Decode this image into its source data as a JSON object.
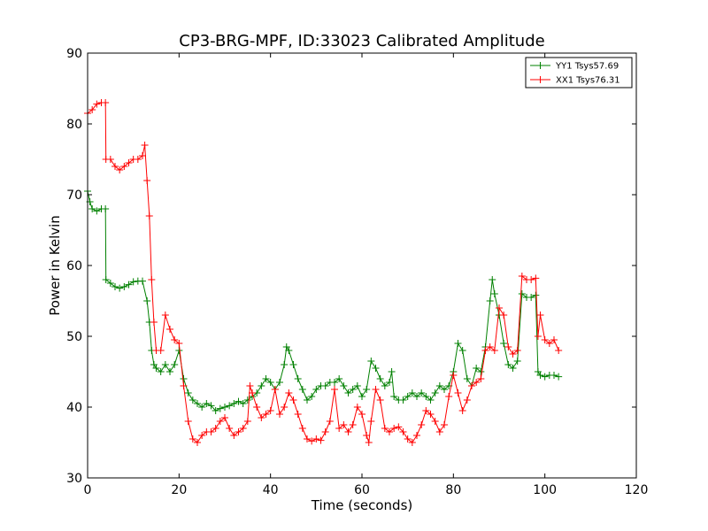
{
  "chart_data": {
    "type": "line",
    "title": "CP3-BRG-MPF, ID:33023 Calibrated Amplitude",
    "xlabel": "Time (seconds)",
    "ylabel": "Power in Kelvin",
    "xlim": [
      0,
      120
    ],
    "ylim": [
      30,
      90
    ],
    "xticks": [
      0,
      20,
      40,
      60,
      80,
      100,
      120
    ],
    "yticks": [
      30,
      40,
      50,
      60,
      70,
      80,
      90
    ],
    "grid": false,
    "legend_position": "top-right",
    "marker": "plus",
    "series": [
      {
        "name": "YY1 Tsys57.69",
        "color": "#008000",
        "points": [
          [
            0,
            70.5
          ],
          [
            0.5,
            69
          ],
          [
            1,
            68
          ],
          [
            2,
            67.7
          ],
          [
            3,
            68
          ],
          [
            3.9,
            68
          ],
          [
            4,
            58
          ],
          [
            5,
            57.5
          ],
          [
            6,
            57
          ],
          [
            7,
            56.8
          ],
          [
            8,
            57
          ],
          [
            9,
            57.3
          ],
          [
            10,
            57.7
          ],
          [
            11,
            57.8
          ],
          [
            12,
            57.8
          ],
          [
            13,
            55
          ],
          [
            13.5,
            52
          ],
          [
            14,
            48
          ],
          [
            14.5,
            46
          ],
          [
            15,
            45.5
          ],
          [
            16,
            45
          ],
          [
            17,
            46
          ],
          [
            18,
            45
          ],
          [
            19,
            46
          ],
          [
            20,
            48
          ],
          [
            21,
            44
          ],
          [
            22,
            42
          ],
          [
            23,
            41
          ],
          [
            24,
            40.5
          ],
          [
            25,
            40
          ],
          [
            26,
            40.5
          ],
          [
            27,
            40.2
          ],
          [
            28,
            39.5
          ],
          [
            29,
            39.8
          ],
          [
            30,
            40
          ],
          [
            31,
            40.2
          ],
          [
            32,
            40.5
          ],
          [
            33,
            40.8
          ],
          [
            34,
            40.5
          ],
          [
            35,
            41
          ],
          [
            36,
            41.5
          ],
          [
            37,
            42
          ],
          [
            38,
            43
          ],
          [
            39,
            44
          ],
          [
            40,
            43.5
          ],
          [
            41,
            42.5
          ],
          [
            42,
            43.5
          ],
          [
            43,
            46
          ],
          [
            43.5,
            48.5
          ],
          [
            44,
            48
          ],
          [
            45,
            46
          ],
          [
            46,
            44
          ],
          [
            47,
            42.5
          ],
          [
            48,
            41
          ],
          [
            49,
            41.5
          ],
          [
            50,
            42.5
          ],
          [
            51,
            43
          ],
          [
            52,
            43
          ],
          [
            53,
            43.5
          ],
          [
            54,
            43.5
          ],
          [
            55,
            44
          ],
          [
            56,
            43
          ],
          [
            57,
            42
          ],
          [
            58,
            42.5
          ],
          [
            59,
            43
          ],
          [
            60,
            41.5
          ],
          [
            61,
            42.5
          ],
          [
            62,
            46.5
          ],
          [
            63,
            45.5
          ],
          [
            64,
            44
          ],
          [
            65,
            43
          ],
          [
            66,
            43.5
          ],
          [
            66.5,
            45
          ],
          [
            67,
            41.5
          ],
          [
            68,
            41
          ],
          [
            69,
            41
          ],
          [
            70,
            41.5
          ],
          [
            71,
            42
          ],
          [
            72,
            41.5
          ],
          [
            73,
            42
          ],
          [
            74,
            41.5
          ],
          [
            75,
            41
          ],
          [
            76,
            42
          ],
          [
            77,
            43
          ],
          [
            78,
            42.5
          ],
          [
            79,
            43
          ],
          [
            80,
            45
          ],
          [
            81,
            49
          ],
          [
            82,
            48
          ],
          [
            83,
            44
          ],
          [
            84,
            43
          ],
          [
            85,
            45.5
          ],
          [
            86,
            45
          ],
          [
            87,
            48.5
          ],
          [
            88,
            55
          ],
          [
            88.5,
            58
          ],
          [
            89,
            56
          ],
          [
            90,
            53
          ],
          [
            91,
            49
          ],
          [
            92,
            46
          ],
          [
            93,
            45.5
          ],
          [
            94,
            46.5
          ],
          [
            95,
            56
          ],
          [
            96,
            55.5
          ],
          [
            97,
            55.5
          ],
          [
            98,
            55.8
          ],
          [
            98.5,
            45
          ],
          [
            99,
            44.5
          ],
          [
            100,
            44.3
          ],
          [
            101,
            44.5
          ],
          [
            102,
            44.5
          ],
          [
            103,
            44.3
          ]
        ]
      },
      {
        "name": "XX1 Tsys76.31",
        "color": "#ff0000",
        "points": [
          [
            0,
            81.5
          ],
          [
            1,
            82
          ],
          [
            2,
            82.8
          ],
          [
            3,
            83
          ],
          [
            3.9,
            83
          ],
          [
            4,
            75
          ],
          [
            5,
            75
          ],
          [
            6,
            74
          ],
          [
            7,
            73.5
          ],
          [
            8,
            74
          ],
          [
            9,
            74.5
          ],
          [
            10,
            75
          ],
          [
            11,
            75
          ],
          [
            12,
            75.5
          ],
          [
            12.5,
            77
          ],
          [
            13,
            72
          ],
          [
            13.5,
            67
          ],
          [
            14,
            58
          ],
          [
            14.5,
            52
          ],
          [
            15,
            48
          ],
          [
            16,
            48
          ],
          [
            17,
            53
          ],
          [
            18,
            51
          ],
          [
            19,
            49.5
          ],
          [
            20,
            49
          ],
          [
            21,
            43
          ],
          [
            22,
            38
          ],
          [
            23,
            35.5
          ],
          [
            24,
            35
          ],
          [
            25,
            36
          ],
          [
            26,
            36.5
          ],
          [
            27,
            36.5
          ],
          [
            28,
            37
          ],
          [
            29,
            38
          ],
          [
            30,
            38.5
          ],
          [
            31,
            37
          ],
          [
            32,
            36
          ],
          [
            33,
            36.5
          ],
          [
            34,
            37
          ],
          [
            35,
            38
          ],
          [
            35.5,
            43
          ],
          [
            36,
            42
          ],
          [
            37,
            40
          ],
          [
            38,
            38.5
          ],
          [
            39,
            39
          ],
          [
            40,
            39.5
          ],
          [
            41,
            42.5
          ],
          [
            42,
            39
          ],
          [
            43,
            40
          ],
          [
            44,
            42
          ],
          [
            45,
            41
          ],
          [
            46,
            39
          ],
          [
            47,
            37
          ],
          [
            48,
            35.5
          ],
          [
            49,
            35.2
          ],
          [
            50,
            35.5
          ],
          [
            51,
            35.3
          ],
          [
            52,
            36.5
          ],
          [
            53,
            38
          ],
          [
            54,
            42.5
          ],
          [
            55,
            37
          ],
          [
            56,
            37.5
          ],
          [
            57,
            36.5
          ],
          [
            58,
            37.5
          ],
          [
            59,
            40
          ],
          [
            60,
            39
          ],
          [
            61,
            36
          ],
          [
            61.5,
            35
          ],
          [
            62,
            38
          ],
          [
            63,
            42.5
          ],
          [
            64,
            41
          ],
          [
            65,
            37
          ],
          [
            66,
            36.5
          ],
          [
            67,
            37
          ],
          [
            68,
            37.2
          ],
          [
            69,
            36.5
          ],
          [
            70,
            35.5
          ],
          [
            71,
            35
          ],
          [
            72,
            36
          ],
          [
            73,
            37.5
          ],
          [
            74,
            39.5
          ],
          [
            75,
            39
          ],
          [
            76,
            38
          ],
          [
            77,
            36.5
          ],
          [
            78,
            37.5
          ],
          [
            79,
            41.5
          ],
          [
            80,
            44.5
          ],
          [
            81,
            42
          ],
          [
            82,
            39.5
          ],
          [
            83,
            41
          ],
          [
            84,
            43
          ],
          [
            85,
            43.5
          ],
          [
            86,
            44
          ],
          [
            87,
            48
          ],
          [
            88,
            48.5
          ],
          [
            89,
            48
          ],
          [
            90,
            54
          ],
          [
            91,
            53
          ],
          [
            92,
            48.5
          ],
          [
            93,
            47.5
          ],
          [
            94,
            48
          ],
          [
            95,
            58.5
          ],
          [
            96,
            58
          ],
          [
            97,
            58
          ],
          [
            98,
            58.2
          ],
          [
            98.5,
            50
          ],
          [
            99,
            53
          ],
          [
            100,
            49.5
          ],
          [
            101,
            49
          ],
          [
            102,
            49.5
          ],
          [
            103,
            48
          ]
        ]
      }
    ]
  }
}
